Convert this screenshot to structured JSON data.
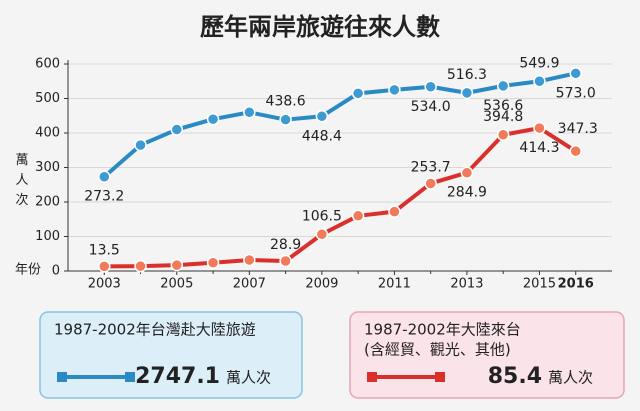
{
  "chart_data": {
    "type": "line",
    "title": "歷年兩岸旅遊往來人數",
    "y_label": "萬人次",
    "x_label": "年份",
    "x": [
      2003,
      2004,
      2005,
      2006,
      2007,
      2008,
      2009,
      2010,
      2011,
      2012,
      2013,
      2014,
      2015,
      2016
    ],
    "xlim": [
      2002,
      2017
    ],
    "xticks": [
      2003,
      2005,
      2007,
      2009,
      2011,
      2013,
      2015,
      2016
    ],
    "ylim": [
      0,
      600
    ],
    "yticks": [
      0,
      100,
      200,
      300,
      400,
      500,
      600
    ],
    "grid": true,
    "series": [
      {
        "color": "#2a8ac4",
        "values": [
          273.2,
          365,
          410,
          440,
          460,
          438.6,
          448.4,
          515,
          525,
          534.0,
          516.3,
          536.6,
          549.9,
          573.0
        ],
        "value_labels": [
          "273.2",
          null,
          null,
          null,
          null,
          "438.6",
          "448.4",
          null,
          null,
          "534.0",
          "516.3",
          "536.6",
          "549.9",
          "573.0"
        ]
      },
      {
        "color": "#d9302c",
        "values": [
          13.5,
          14,
          17,
          24,
          32,
          28.9,
          106.5,
          160,
          172,
          253.7,
          284.9,
          394.8,
          414.3,
          347.3
        ],
        "value_labels": [
          "13.5",
          null,
          null,
          null,
          null,
          "28.9",
          "106.5",
          null,
          null,
          "253.7",
          "284.9",
          "394.8",
          "414.3",
          "347.3"
        ]
      }
    ],
    "notes": [
      {
        "text": [
          "1987-2002年台灣赴大陸旅遊"
        ],
        "value": "2747.1",
        "unit": "萬人次"
      },
      {
        "text": [
          "1987-2002年大陸來台",
          "(含經貿、觀光、其他)"
        ],
        "value": "85.4",
        "unit": "萬人次"
      }
    ]
  }
}
